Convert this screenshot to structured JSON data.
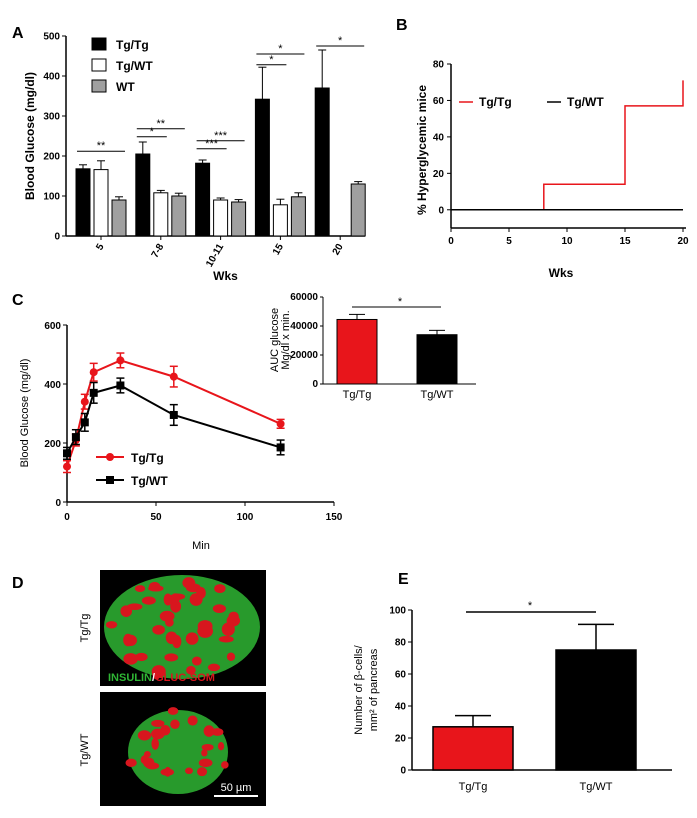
{
  "panel_labels": {
    "A": "A",
    "B": "B",
    "C": "C",
    "D": "D",
    "E": "E"
  },
  "colors": {
    "tgtg_bar": "#000000",
    "tgwt_bar": "#ffffff",
    "wt_bar": "#a0a0a0",
    "red": "#e8151b",
    "black": "#000000",
    "micro_green": "#2fb534",
    "micro_red": "#d8161e"
  },
  "chart_data": [
    {
      "panel": "A",
      "type": "bar",
      "ylabel": "Blood Glucose (mg/dl)",
      "xlabel": "Wks",
      "ylim": [
        0,
        500
      ],
      "yticks": [
        "0",
        "100",
        "200",
        "300",
        "400",
        "500"
      ],
      "categories": [
        "5",
        "7-8",
        "10-11",
        "15",
        "20"
      ],
      "legend": [
        "Tg/Tg",
        "Tg/WT",
        "WT"
      ],
      "series": [
        {
          "name": "Tg/Tg",
          "color": "#000000",
          "values": [
            168,
            205,
            182,
            342,
            370
          ],
          "errors": [
            10,
            30,
            8,
            80,
            95
          ]
        },
        {
          "name": "Tg/WT",
          "color": "#ffffff",
          "values": [
            166,
            108,
            90,
            78,
            0
          ],
          "errors": [
            22,
            6,
            5,
            14,
            0
          ]
        },
        {
          "name": "WT",
          "color": "#a0a0a0",
          "values": [
            90,
            100,
            85,
            98,
            130
          ],
          "errors": [
            8,
            7,
            6,
            10,
            6
          ]
        }
      ],
      "significance": [
        {
          "group": 0,
          "from": 0,
          "to": 2,
          "label": "**",
          "y": 212
        },
        {
          "group": 1,
          "from": 0,
          "to": 1,
          "label": "*",
          "y": 248
        },
        {
          "group": 1,
          "from": 0,
          "to": 2,
          "label": "**",
          "y": 268
        },
        {
          "group": 2,
          "from": 0,
          "to": 1,
          "label": "***",
          "y": 218
        },
        {
          "group": 2,
          "from": 0,
          "to": 2,
          "label": "***",
          "y": 238
        },
        {
          "group": 3,
          "from": 0,
          "to": 1,
          "label": "*",
          "y": 428
        },
        {
          "group": 3,
          "from": 0,
          "to": 2,
          "label": "*",
          "y": 455
        },
        {
          "group": 4,
          "from": 0,
          "to": 2,
          "label": "*",
          "y": 475
        }
      ]
    },
    {
      "panel": "B",
      "type": "line",
      "ylabel": "% Hyperglycemic mice",
      "xlabel": "Wks",
      "xlim": [
        0,
        20
      ],
      "ylim": [
        -10,
        80
      ],
      "xticks": [
        "0",
        "5",
        "10",
        "15",
        "20"
      ],
      "yticks": [
        "0",
        "20",
        "40",
        "60",
        "80"
      ],
      "series": [
        {
          "name": "Tg/Tg",
          "color": "#e8151b",
          "x": [
            0,
            8,
            8,
            15,
            15,
            20,
            20
          ],
          "y": [
            0,
            0,
            14,
            14,
            57,
            57,
            71
          ]
        },
        {
          "name": "Tg/WT",
          "color": "#000000",
          "x": [
            0,
            20
          ],
          "y": [
            0,
            0
          ]
        }
      ]
    },
    {
      "panel": "C",
      "type": "line",
      "ylabel": "Blood Glucose (mg/dl)",
      "xlabel": "Min",
      "xlim": [
        0,
        150
      ],
      "ylim": [
        0,
        600
      ],
      "xticks": [
        "0",
        "50",
        "100",
        "150"
      ],
      "yticks": [
        "0",
        "200",
        "400",
        "600"
      ],
      "series": [
        {
          "name": "Tg/Tg",
          "color": "#e8151b",
          "marker": "circle",
          "x": [
            0,
            5,
            10,
            15,
            30,
            60,
            120
          ],
          "y": [
            120,
            210,
            340,
            440,
            480,
            425,
            265
          ],
          "errors": [
            20,
            20,
            25,
            30,
            25,
            35,
            15
          ]
        },
        {
          "name": "Tg/WT",
          "color": "#000000",
          "marker": "square",
          "x": [
            0,
            5,
            10,
            15,
            30,
            60,
            120
          ],
          "y": [
            165,
            220,
            270,
            370,
            395,
            295,
            185
          ],
          "errors": [
            20,
            25,
            30,
            35,
            25,
            35,
            25
          ]
        }
      ]
    },
    {
      "panel": "C-inset",
      "type": "bar",
      "ylabel_line1": "AUC glucose",
      "ylabel_line2": "Mg/dl x min.",
      "ylim": [
        0,
        60000
      ],
      "yticks": [
        "0",
        "20000",
        "40000",
        "60000"
      ],
      "categories": [
        "Tg/Tg",
        "Tg/WT"
      ],
      "values": [
        44500,
        34000
      ],
      "errors": [
        3500,
        3000
      ],
      "colors": [
        "#e8151b",
        "#000000"
      ],
      "significance": "*"
    },
    {
      "panel": "E",
      "type": "bar",
      "ylabel_line1": "Number of β-cells/",
      "ylabel_line2": "mm² of pancreas",
      "ylim": [
        0,
        100
      ],
      "yticks": [
        "0",
        "20",
        "40",
        "60",
        "80",
        "100"
      ],
      "categories": [
        "Tg/Tg",
        "Tg/WT"
      ],
      "values": [
        27,
        75
      ],
      "errors": [
        7,
        16
      ],
      "colors": [
        "#e8151b",
        "#000000"
      ],
      "significance": "*"
    }
  ],
  "micrographs": {
    "top_label": "Tg/Tg",
    "bottom_label": "Tg/WT",
    "stain_insulin": "INSULIN",
    "stain_sep": "/",
    "stain_gluc": "GLUC-SOM",
    "scale_bar": "50 µm"
  }
}
